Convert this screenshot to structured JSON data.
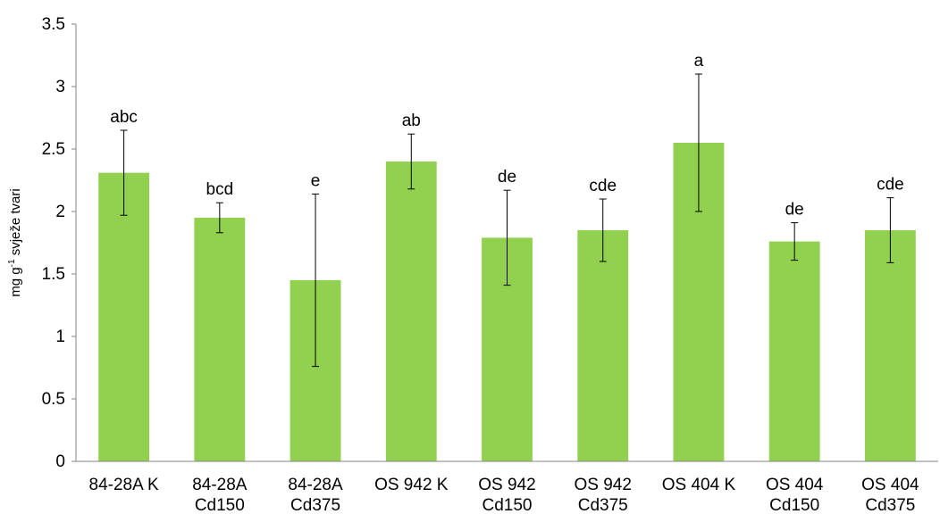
{
  "chart_data": {
    "type": "bar",
    "categories": [
      [
        "84-28A K"
      ],
      [
        "84-28A",
        "Cd150"
      ],
      [
        "84-28A",
        "Cd375"
      ],
      [
        "OS 942 K"
      ],
      [
        "OS 942",
        "Cd150"
      ],
      [
        "OS 942",
        "Cd375"
      ],
      [
        "OS 404 K"
      ],
      [
        "OS 404",
        "Cd150"
      ],
      [
        "OS 404",
        "Cd375"
      ]
    ],
    "values": [
      2.31,
      1.95,
      1.45,
      2.4,
      1.79,
      1.85,
      2.55,
      1.76,
      1.85
    ],
    "errors": [
      0.34,
      0.12,
      0.69,
      0.22,
      0.38,
      0.25,
      0.55,
      0.15,
      0.26
    ],
    "significance": [
      "abc",
      "bcd",
      "e",
      "ab",
      "de",
      "cde",
      "a",
      "de",
      "cde"
    ],
    "ylabel_main": "mg g",
    "ylabel_sup": "-1",
    "ylabel_rest": " svježe tvari",
    "ylim": [
      0,
      3.5
    ],
    "yticks": [
      "0",
      "0.5",
      "1",
      "1.5",
      "2",
      "2.5",
      "3",
      "3.5"
    ],
    "bar_color": "#92D050",
    "grid": false,
    "legend": "none"
  }
}
